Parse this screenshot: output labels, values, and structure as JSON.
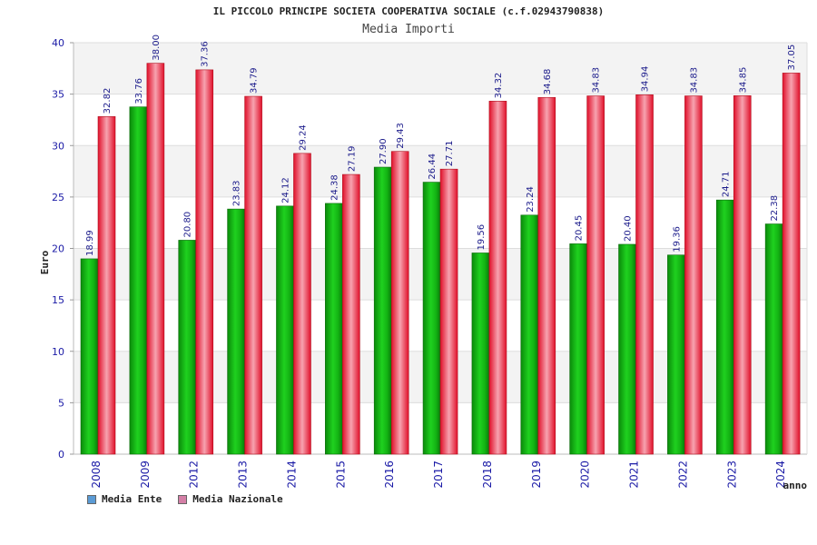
{
  "title": "IL PICCOLO PRINCIPE SOCIETA COOPERATIVA SOCIALE (c.f.02943790838)",
  "subtitle": "Media Importi",
  "legend": {
    "items": [
      {
        "label": "Media Ente",
        "color": "#5b9bd5"
      },
      {
        "label": "Media Nazionale",
        "color": "#d47fa6"
      }
    ]
  },
  "chart_data": {
    "type": "bar",
    "title": "IL PICCOLO PRINCIPE SOCIETA COOPERATIVA SOCIALE (c.f.02943790838)",
    "subtitle": "Media Importi",
    "xlabel": "anno",
    "ylabel": "Euro",
    "ylim": [
      0,
      40
    ],
    "yticks": [
      0,
      5,
      10,
      15,
      20,
      25,
      30,
      35,
      40
    ],
    "grid": true,
    "legend_position": "bottom-left",
    "categories": [
      "2008",
      "2009",
      "2012",
      "2013",
      "2014",
      "2015",
      "2016",
      "2017",
      "2018",
      "2019",
      "2020",
      "2021",
      "2022",
      "2023",
      "2024"
    ],
    "series": [
      {
        "name": "Media Ente",
        "color": "#12b312",
        "values": [
          18.99,
          33.76,
          20.8,
          23.83,
          24.12,
          24.38,
          27.9,
          26.44,
          19.56,
          23.24,
          20.45,
          20.4,
          19.36,
          24.71,
          22.38
        ],
        "labels": [
          "18.99",
          "33.76",
          "20.80",
          "23.83",
          "24.12",
          "24.38",
          "27.90",
          "26.44",
          "19.56",
          "23.24",
          "20.45",
          "20.40",
          "19.36",
          "24.71",
          "22.38"
        ]
      },
      {
        "name": "Media Nazionale",
        "color": "#e8202e",
        "values": [
          32.82,
          38.0,
          37.36,
          34.79,
          29.24,
          27.19,
          29.43,
          27.71,
          34.32,
          34.68,
          34.83,
          34.94,
          34.83,
          34.85,
          37.05
        ],
        "labels": [
          "32.82",
          "38.00",
          "37.36",
          "34.79",
          "29.24",
          "27.19",
          "29.43",
          "27.71",
          "34.32",
          "34.68",
          "34.83",
          "34.94",
          "34.83",
          "34.85",
          "37.05"
        ]
      }
    ]
  }
}
